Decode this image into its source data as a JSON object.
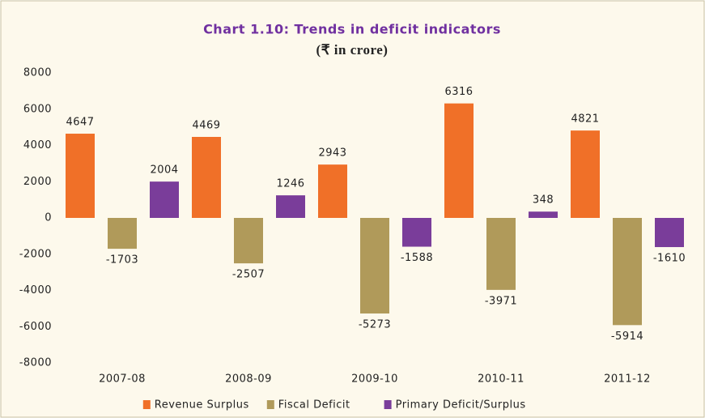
{
  "chart_data": {
    "type": "bar",
    "title": "Chart 1.10: Trends in deficit indicators",
    "subtitle": "(₹ in crore)",
    "categories": [
      "2007-08",
      "2008-09",
      "2009-10",
      "2010-11",
      "2011-12"
    ],
    "series": [
      {
        "name": "Revenue Surplus",
        "color": "#f07028",
        "values": [
          4647,
          4469,
          2943,
          6316,
          4821
        ]
      },
      {
        "name": "Fiscal Deficit",
        "color": "#b09a5a",
        "values": [
          -1703,
          -2507,
          -5273,
          -3971,
          -5914
        ]
      },
      {
        "name": "Primary Deficit/Surplus",
        "color": "#7a3d9a",
        "values": [
          2004,
          1246,
          -1588,
          348,
          -1610
        ]
      }
    ],
    "ylim": [
      -8000,
      8000
    ],
    "yticks": [
      -8000,
      -6000,
      -4000,
      -2000,
      0,
      2000,
      4000,
      6000,
      8000
    ],
    "grid": false,
    "legend": "bottom"
  }
}
